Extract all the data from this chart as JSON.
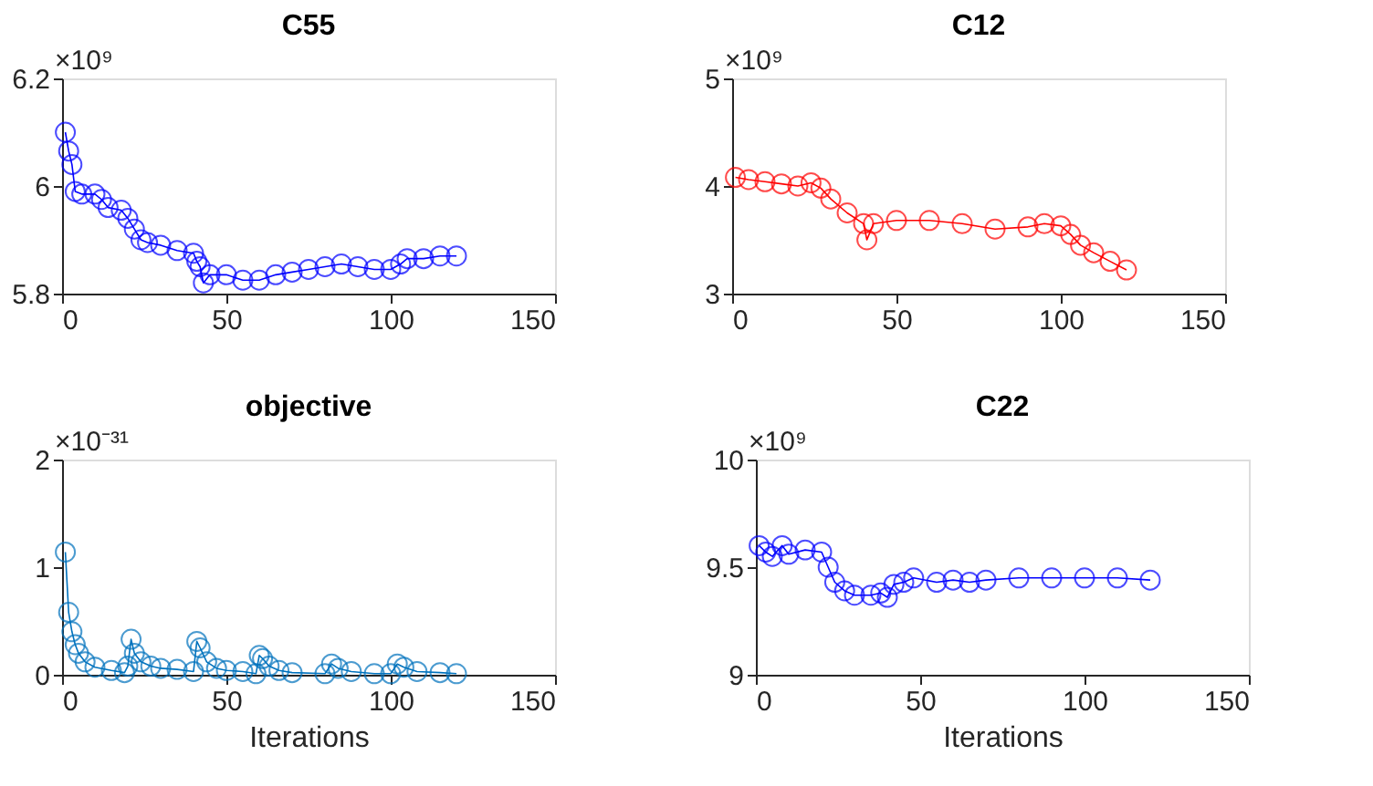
{
  "chart_data": [
    {
      "type": "line",
      "title": "C55",
      "ylabel": "×10⁹",
      "marker": "circle",
      "line_style": "solid",
      "grid": false,
      "xlim": [
        0,
        150
      ],
      "xticks": [
        0,
        50,
        100,
        150
      ],
      "ylim": [
        5.8,
        6.2
      ],
      "yticks": [
        5.8,
        6,
        6.2
      ],
      "series": [
        {
          "color": "#0000ff",
          "x": [
            1,
            2,
            3,
            4,
            6,
            10,
            12,
            14,
            18,
            20,
            22,
            24,
            26,
            30,
            35,
            40,
            41,
            42,
            43,
            45,
            50,
            55,
            60,
            65,
            70,
            75,
            80,
            85,
            90,
            95,
            100,
            103,
            105,
            110,
            115,
            120
          ],
          "values": [
            6.1,
            6.065,
            6.04,
            5.99,
            5.985,
            5.985,
            5.975,
            5.96,
            5.955,
            5.94,
            5.92,
            5.9,
            5.895,
            5.89,
            5.88,
            5.875,
            5.86,
            5.85,
            5.82,
            5.835,
            5.835,
            5.825,
            5.825,
            5.835,
            5.84,
            5.845,
            5.85,
            5.855,
            5.85,
            5.845,
            5.845,
            5.855,
            5.865,
            5.865,
            5.87,
            5.87
          ]
        }
      ]
    },
    {
      "type": "line",
      "title": "C12",
      "ylabel": "×10⁹",
      "marker": "circle",
      "line_style": "solid",
      "grid": false,
      "xlim": [
        0,
        150
      ],
      "xticks": [
        0,
        50,
        100,
        150
      ],
      "ylim": [
        3,
        5
      ],
      "yticks": [
        3,
        4,
        5
      ],
      "series": [
        {
          "color": "#ff0000",
          "x": [
            1,
            5,
            10,
            15,
            20,
            24,
            27,
            30,
            35,
            40,
            41,
            43,
            50,
            60,
            70,
            80,
            90,
            95,
            100,
            103,
            106,
            110,
            115,
            120
          ],
          "values": [
            4.08,
            4.06,
            4.04,
            4.02,
            4.0,
            4.03,
            3.98,
            3.88,
            3.75,
            3.65,
            3.5,
            3.65,
            3.68,
            3.68,
            3.65,
            3.6,
            3.62,
            3.65,
            3.63,
            3.55,
            3.45,
            3.38,
            3.3,
            3.22
          ]
        }
      ]
    },
    {
      "type": "line",
      "title": "objective",
      "ylabel": "×10⁻³¹",
      "xlabel": "Iterations",
      "marker": "circle",
      "line_style": "solid",
      "grid": false,
      "xlim": [
        0,
        150
      ],
      "xticks": [
        0,
        50,
        100,
        150
      ],
      "ylim": [
        0,
        2
      ],
      "yticks": [
        0,
        1,
        2
      ],
      "series": [
        {
          "color": "#0072bd",
          "x": [
            1,
            2,
            3,
            4,
            5,
            7,
            10,
            15,
            19,
            20,
            21,
            22,
            24,
            27,
            30,
            35,
            40,
            41,
            42,
            44,
            47,
            50,
            55,
            59,
            60,
            61,
            63,
            66,
            70,
            80,
            82,
            84,
            88,
            95,
            100,
            102,
            104,
            108,
            115,
            120
          ],
          "values": [
            1.14,
            0.58,
            0.4,
            0.28,
            0.2,
            0.12,
            0.07,
            0.04,
            0.02,
            0.08,
            0.33,
            0.2,
            0.12,
            0.08,
            0.06,
            0.05,
            0.03,
            0.31,
            0.25,
            0.12,
            0.06,
            0.04,
            0.03,
            0.01,
            0.18,
            0.15,
            0.08,
            0.04,
            0.02,
            0.01,
            0.1,
            0.06,
            0.03,
            0.01,
            0.01,
            0.1,
            0.07,
            0.03,
            0.02,
            0.01
          ]
        }
      ]
    },
    {
      "type": "line",
      "title": "C22",
      "ylabel": "×10⁹",
      "xlabel": "Iterations",
      "marker": "circle",
      "line_style": "solid",
      "grid": false,
      "xlim": [
        0,
        150
      ],
      "xticks": [
        0,
        50,
        100,
        150
      ],
      "ylim": [
        9,
        10
      ],
      "yticks": [
        9,
        9.5,
        10
      ],
      "series": [
        {
          "color": "#0000ff",
          "x": [
            1,
            3,
            5,
            8,
            10,
            15,
            20,
            22,
            24,
            27,
            30,
            35,
            38,
            40,
            42,
            45,
            48,
            55,
            60,
            65,
            70,
            80,
            90,
            100,
            110,
            120
          ],
          "values": [
            9.6,
            9.57,
            9.55,
            9.6,
            9.56,
            9.58,
            9.57,
            9.5,
            9.43,
            9.39,
            9.37,
            9.37,
            9.38,
            9.36,
            9.42,
            9.43,
            9.45,
            9.43,
            9.44,
            9.43,
            9.44,
            9.45,
            9.45,
            9.45,
            9.45,
            9.44
          ]
        }
      ]
    }
  ]
}
